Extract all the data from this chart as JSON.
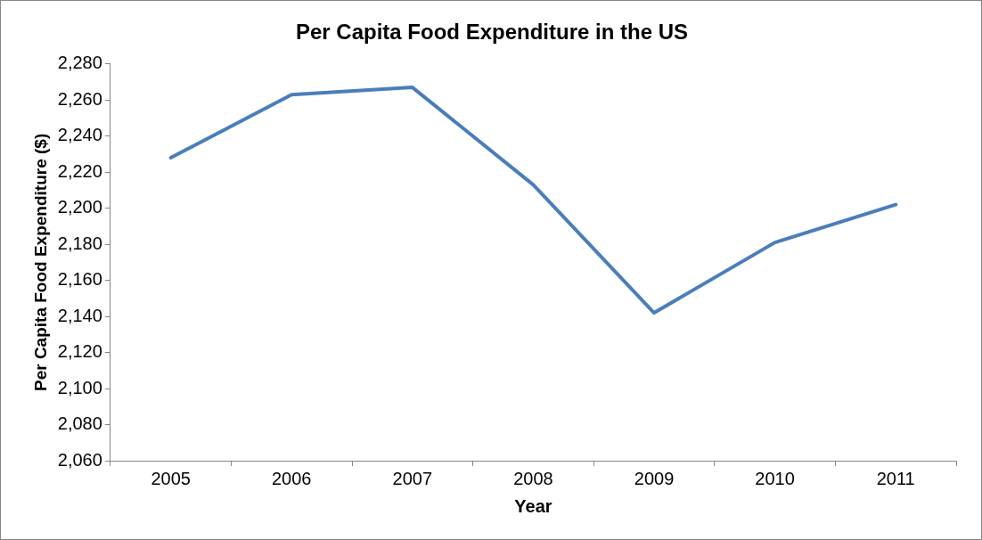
{
  "chart_data": {
    "type": "line",
    "title": "Per Capita Food Expenditure in the US",
    "xlabel": "Year",
    "ylabel": "Per Capita Food Expenditure ($)",
    "categories": [
      "2005",
      "2006",
      "2007",
      "2008",
      "2009",
      "2010",
      "2011"
    ],
    "series": [
      {
        "color": "#4a7ebb",
        "values": [
          2228,
          2263,
          2267,
          2213,
          2142,
          2181,
          2202
        ]
      }
    ],
    "ylim": [
      2060,
      2280
    ],
    "yticks": [
      {
        "value": 2060,
        "label": "2,060"
      },
      {
        "value": 2080,
        "label": "2,080"
      },
      {
        "value": 2100,
        "label": "2,100"
      },
      {
        "value": 2120,
        "label": "2,120"
      },
      {
        "value": 2140,
        "label": "2,140"
      },
      {
        "value": 2160,
        "label": "2,160"
      },
      {
        "value": 2180,
        "label": "2,180"
      },
      {
        "value": 2200,
        "label": "2,200"
      },
      {
        "value": 2220,
        "label": "2,220"
      },
      {
        "value": 2240,
        "label": "2,240"
      },
      {
        "value": 2260,
        "label": "2,260"
      },
      {
        "value": 2280,
        "label": "2,280"
      }
    ],
    "grid": false,
    "legend": false,
    "marker": "none",
    "line_style": "solid"
  }
}
